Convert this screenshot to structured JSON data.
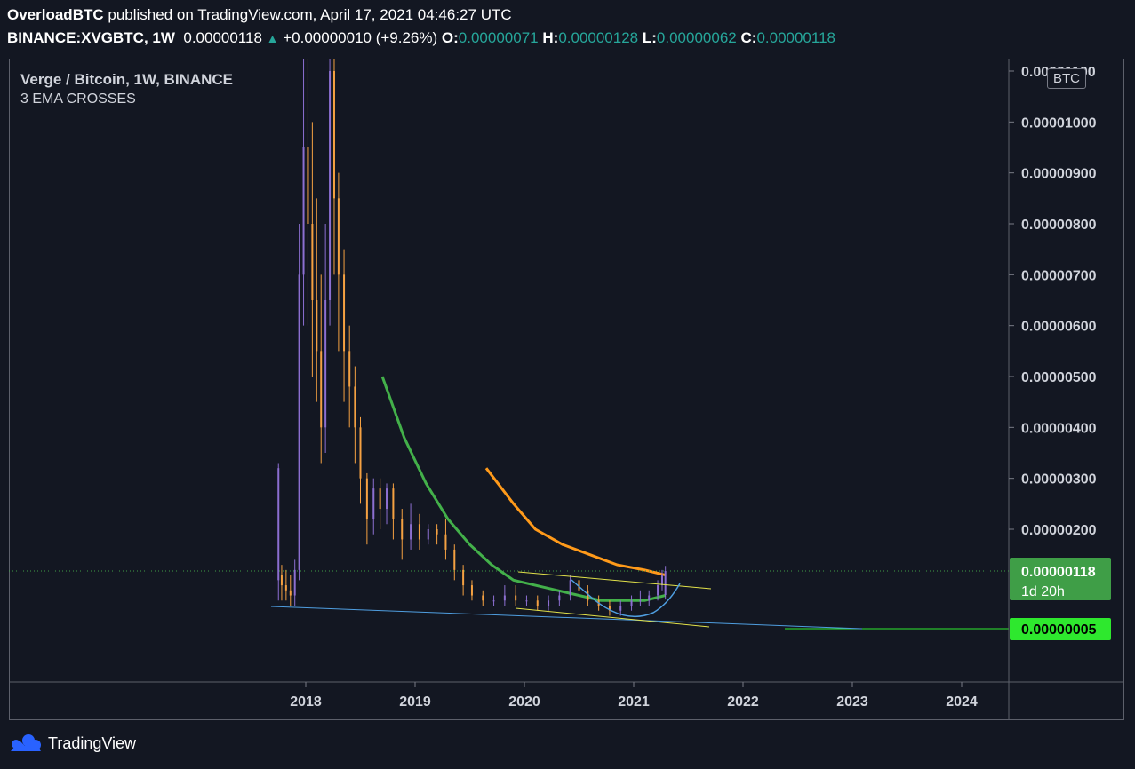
{
  "header": {
    "author": "OverloadBTC",
    "published_text": "published on TradingView.com, April 17, 2021 04:46:27 UTC",
    "symbol": "BINANCE:XVGBTC, 1W",
    "last": "0.00000118",
    "arrow": "▲",
    "change": "+0.00000010 (+9.26%)",
    "o_label": "O:",
    "o_value": "0.00000071",
    "h_label": "H:",
    "h_value": "0.00000128",
    "l_label": "L:",
    "l_value": "0.00000062",
    "c_label": "C:",
    "c_value": "0.00000118"
  },
  "legend": {
    "title": "Verge / Bitcoin, 1W, BINANCE",
    "indicator": "3 EMA CROSSES"
  },
  "currency_badge": "BTC",
  "footer": {
    "brand": "TradingView",
    "icon": "tradingview-logo-icon"
  },
  "colors": {
    "background": "#131722",
    "candle_up": "#8c6fd1",
    "candle_down": "#f5a142",
    "ema_fast": "#ff9a1a",
    "ema_slow": "#43b04a",
    "trend_blue": "#4f9ee0",
    "trend_yellow": "#e2e24a",
    "green_level": "#2ee82e",
    "price_label": "#3f9e47"
  },
  "chart_data": {
    "type": "candlestick",
    "y_ticks": [
      "0.00001100",
      "0.00001000",
      "0.00000900",
      "0.00000800",
      "0.00000700",
      "0.00000600",
      "0.00000500",
      "0.00000400",
      "0.00000300",
      "0.00000200"
    ],
    "x_ticks": [
      "2018",
      "2019",
      "2020",
      "2021",
      "2022",
      "2023",
      "2024"
    ],
    "ylim": [
      -5e-07,
      1.15e-05
    ],
    "current_price": {
      "value": "0.00000118",
      "countdown": "1d 20h"
    },
    "horizontal_level": {
      "value": "0.00000005"
    },
    "candles_approx": [
      {
        "x": 2017.75,
        "o": 1e-06,
        "c": 3.2e-06,
        "h": 3.3e-06,
        "l": 6e-07
      },
      {
        "x": 2017.78,
        "o": 1.1e-06,
        "c": 9e-07,
        "h": 1.3e-06,
        "l": 6e-07
      },
      {
        "x": 2017.82,
        "o": 9e-07,
        "c": 8e-07,
        "h": 1.2e-06,
        "l": 6e-07
      },
      {
        "x": 2017.86,
        "o": 8e-07,
        "c": 7e-07,
        "h": 1.1e-06,
        "l": 5e-07
      },
      {
        "x": 2017.9,
        "o": 7e-07,
        "c": 1.2e-06,
        "h": 1.4e-06,
        "l": 5e-07
      },
      {
        "x": 2017.94,
        "o": 1.2e-06,
        "c": 7e-06,
        "h": 8e-06,
        "l": 1e-06
      },
      {
        "x": 2017.98,
        "o": 7e-06,
        "c": 9.5e-06,
        "h": 1.15e-05,
        "l": 6e-06
      },
      {
        "x": 2018.02,
        "o": 9.5e-06,
        "c": 8e-06,
        "h": 1.15e-05,
        "l": 6e-06
      },
      {
        "x": 2018.06,
        "o": 8e-06,
        "c": 6.5e-06,
        "h": 1e-05,
        "l": 5e-06
      },
      {
        "x": 2018.1,
        "o": 6.5e-06,
        "c": 5.5e-06,
        "h": 8.5e-06,
        "l": 4.5e-06
      },
      {
        "x": 2018.14,
        "o": 5.5e-06,
        "c": 4e-06,
        "h": 7e-06,
        "l": 3.3e-06
      },
      {
        "x": 2018.18,
        "o": 4e-06,
        "c": 6.5e-06,
        "h": 8e-06,
        "l": 3.5e-06
      },
      {
        "x": 2018.22,
        "o": 6.5e-06,
        "c": 1.1e-05,
        "h": 1.15e-05,
        "l": 6e-06
      },
      {
        "x": 2018.26,
        "o": 1.1e-05,
        "c": 8.5e-06,
        "h": 1.15e-05,
        "l": 7e-06
      },
      {
        "x": 2018.3,
        "o": 8.5e-06,
        "c": 7e-06,
        "h": 9e-06,
        "l": 5.5e-06
      },
      {
        "x": 2018.35,
        "o": 7e-06,
        "c": 5.5e-06,
        "h": 7.5e-06,
        "l": 4.5e-06
      },
      {
        "x": 2018.4,
        "o": 5.5e-06,
        "c": 4.8e-06,
        "h": 6e-06,
        "l": 4e-06
      },
      {
        "x": 2018.45,
        "o": 4.8e-06,
        "c": 4e-06,
        "h": 5.2e-06,
        "l": 3.3e-06
      },
      {
        "x": 2018.5,
        "o": 4e-06,
        "c": 3e-06,
        "h": 4.2e-06,
        "l": 2.5e-06
      },
      {
        "x": 2018.56,
        "o": 3e-06,
        "c": 2.2e-06,
        "h": 3.1e-06,
        "l": 1.7e-06
      },
      {
        "x": 2018.62,
        "o": 2.2e-06,
        "c": 2.8e-06,
        "h": 3e-06,
        "l": 1.9e-06
      },
      {
        "x": 2018.68,
        "o": 2.8e-06,
        "c": 2.4e-06,
        "h": 3e-06,
        "l": 2e-06
      },
      {
        "x": 2018.74,
        "o": 2.4e-06,
        "c": 2.8e-06,
        "h": 2.9e-06,
        "l": 2.1e-06
      },
      {
        "x": 2018.8,
        "o": 2.8e-06,
        "c": 2.2e-06,
        "h": 2.9e-06,
        "l": 1.8e-06
      },
      {
        "x": 2018.88,
        "o": 2.2e-06,
        "c": 1.8e-06,
        "h": 2.4e-06,
        "l": 1.4e-06
      },
      {
        "x": 2018.96,
        "o": 1.8e-06,
        "c": 2.1e-06,
        "h": 2.5e-06,
        "l": 1.6e-06
      },
      {
        "x": 2019.04,
        "o": 2.1e-06,
        "c": 1.8e-06,
        "h": 2.3e-06,
        "l": 1.6e-06
      },
      {
        "x": 2019.12,
        "o": 1.8e-06,
        "c": 2e-06,
        "h": 2.1e-06,
        "l": 1.7e-06
      },
      {
        "x": 2019.2,
        "o": 2e-06,
        "c": 1.9e-06,
        "h": 2.1e-06,
        "l": 1.7e-06
      },
      {
        "x": 2019.28,
        "o": 1.9e-06,
        "c": 1.6e-06,
        "h": 2.2e-06,
        "l": 1.4e-06
      },
      {
        "x": 2019.36,
        "o": 1.6e-06,
        "c": 1.2e-06,
        "h": 1.7e-06,
        "l": 1e-06
      },
      {
        "x": 2019.44,
        "o": 1.2e-06,
        "c": 9e-07,
        "h": 1.3e-06,
        "l": 7e-07
      },
      {
        "x": 2019.52,
        "o": 9e-07,
        "c": 7e-07,
        "h": 1e-06,
        "l": 6e-07
      },
      {
        "x": 2019.62,
        "o": 7e-07,
        "c": 6e-07,
        "h": 8e-07,
        "l": 5e-07
      },
      {
        "x": 2019.72,
        "o": 6e-07,
        "c": 6e-07,
        "h": 7e-07,
        "l": 5e-07
      },
      {
        "x": 2019.82,
        "o": 6e-07,
        "c": 7e-07,
        "h": 9e-07,
        "l": 5e-07
      },
      {
        "x": 2019.92,
        "o": 7e-07,
        "c": 6e-07,
        "h": 9e-07,
        "l": 5e-07
      },
      {
        "x": 2020.02,
        "o": 6e-07,
        "c": 6e-07,
        "h": 7e-07,
        "l": 5e-07
      },
      {
        "x": 2020.12,
        "o": 6e-07,
        "c": 5e-07,
        "h": 7e-07,
        "l": 4e-07
      },
      {
        "x": 2020.22,
        "o": 5e-07,
        "c": 6e-07,
        "h": 7e-07,
        "l": 4e-07
      },
      {
        "x": 2020.32,
        "o": 6e-07,
        "c": 7e-07,
        "h": 8e-07,
        "l": 5e-07
      },
      {
        "x": 2020.42,
        "o": 7e-07,
        "c": 1e-06,
        "h": 1.1e-06,
        "l": 6e-07
      },
      {
        "x": 2020.5,
        "o": 1e-06,
        "c": 8e-07,
        "h": 1.1e-06,
        "l": 7e-07
      },
      {
        "x": 2020.58,
        "o": 8e-07,
        "c": 6e-07,
        "h": 9e-07,
        "l": 5e-07
      },
      {
        "x": 2020.68,
        "o": 6e-07,
        "c": 5e-07,
        "h": 7e-07,
        "l": 4e-07
      },
      {
        "x": 2020.78,
        "o": 5e-07,
        "c": 4e-07,
        "h": 6e-07,
        "l": 3e-07
      },
      {
        "x": 2020.88,
        "o": 4e-07,
        "c": 5e-07,
        "h": 6e-07,
        "l": 3e-07
      },
      {
        "x": 2020.98,
        "o": 5e-07,
        "c": 6e-07,
        "h": 7e-07,
        "l": 4e-07
      },
      {
        "x": 2021.06,
        "o": 6e-07,
        "c": 6e-07,
        "h": 8e-07,
        "l": 5e-07
      },
      {
        "x": 2021.14,
        "o": 6e-07,
        "c": 7e-07,
        "h": 8e-07,
        "l": 5e-07
      },
      {
        "x": 2021.22,
        "o": 7e-07,
        "c": 9e-07,
        "h": 1e-06,
        "l": 6e-07
      },
      {
        "x": 2021.26,
        "o": 9e-07,
        "c": 1.1e-06,
        "h": 1.2e-06,
        "l": 8e-07
      },
      {
        "x": 2021.29,
        "o": 7.1e-07,
        "c": 1.18e-06,
        "h": 1.28e-06,
        "l": 6.2e-07
      }
    ],
    "ema_slow": [
      [
        2018.7,
        5e-06
      ],
      [
        2018.9,
        3.8e-06
      ],
      [
        2019.1,
        2.9e-06
      ],
      [
        2019.3,
        2.2e-06
      ],
      [
        2019.5,
        1.7e-06
      ],
      [
        2019.7,
        1.3e-06
      ],
      [
        2019.9,
        1e-06
      ],
      [
        2020.1,
        9e-07
      ],
      [
        2020.3,
        8e-07
      ],
      [
        2020.5,
        7e-07
      ],
      [
        2020.7,
        6e-07
      ],
      [
        2020.9,
        6e-07
      ],
      [
        2021.1,
        6e-07
      ],
      [
        2021.29,
        7e-07
      ]
    ],
    "ema_fast": [
      [
        2019.65,
        3.2e-06
      ],
      [
        2019.9,
        2.5e-06
      ],
      [
        2020.1,
        2e-06
      ],
      [
        2020.35,
        1.7e-06
      ],
      [
        2020.6,
        1.5e-06
      ],
      [
        2020.85,
        1.3e-06
      ],
      [
        2021.1,
        1.2e-06
      ],
      [
        2021.29,
        1.1e-06
      ]
    ]
  }
}
